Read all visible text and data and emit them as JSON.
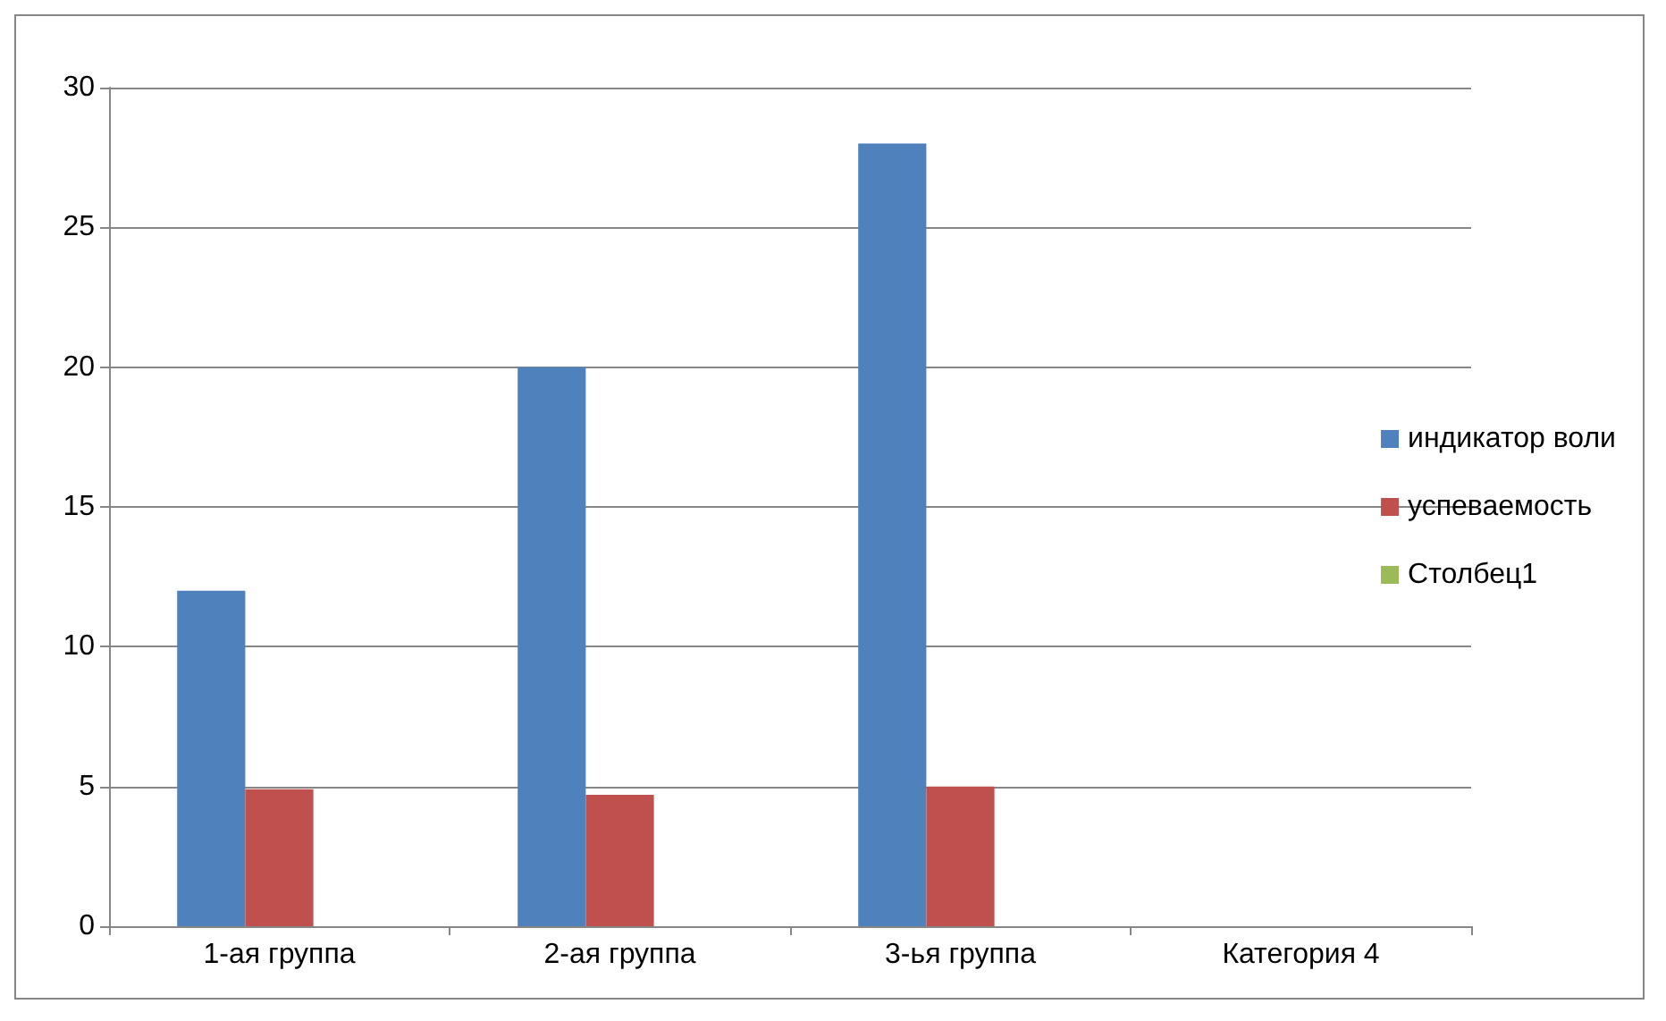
{
  "chart_data": {
    "type": "bar",
    "categories": [
      "1-ая группа",
      "2-ая группа",
      "3-ья группа",
      "Категория 4"
    ],
    "series": [
      {
        "name": "индикатор воли",
        "color": "#4f81bd",
        "values": [
          12,
          20,
          28,
          null
        ]
      },
      {
        "name": "успеваемость",
        "color": "#c0504d",
        "values": [
          4.9,
          4.7,
          5.0,
          null
        ]
      },
      {
        "name": "Столбец1",
        "color": "#9bbb59",
        "values": [
          null,
          null,
          null,
          null
        ]
      }
    ],
    "ylim": [
      0,
      30
    ],
    "yticks": [
      0,
      5,
      10,
      15,
      20,
      25,
      30
    ],
    "grid": "y",
    "legend": "right"
  }
}
